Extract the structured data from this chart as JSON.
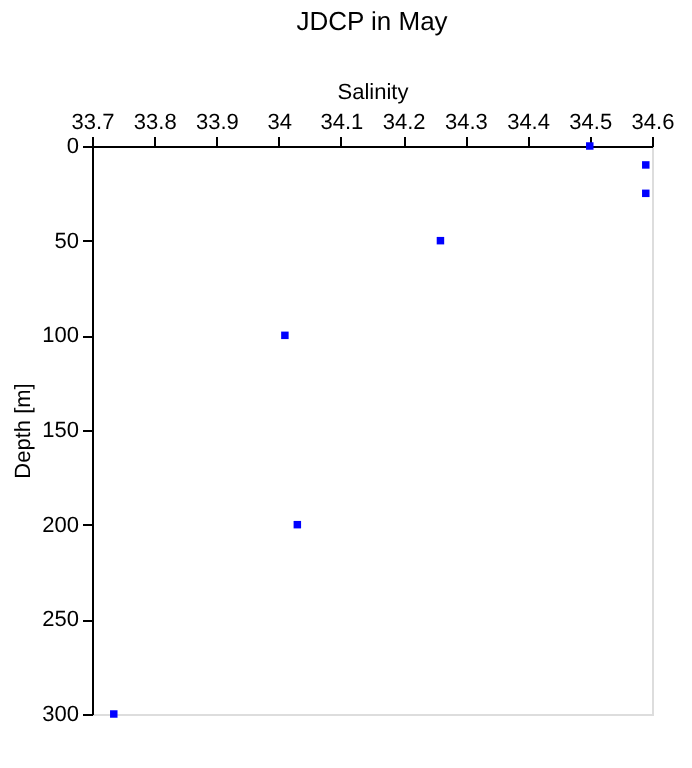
{
  "chart_data": {
    "type": "scatter",
    "title": "JDCP in May",
    "xlabel": "Salinity",
    "ylabel": "Depth [m]",
    "x": [
      34.5,
      34.59,
      34.59,
      34.26,
      34.01,
      34.03,
      33.735
    ],
    "series": [
      {
        "color": "#0000ff",
        "values": [
          0,
          10,
          25,
          50,
          100,
          200,
          300
        ]
      }
    ],
    "xlim": [
      33.7,
      34.6
    ],
    "xticks": [
      33.7,
      33.8,
      33.9,
      34,
      34.1,
      34.2,
      34.3,
      34.4,
      34.5,
      34.6
    ],
    "ylim": [
      300,
      0
    ],
    "yticks": [
      0,
      50,
      100,
      150,
      200,
      250,
      300
    ],
    "marker": "square",
    "grid": false
  }
}
